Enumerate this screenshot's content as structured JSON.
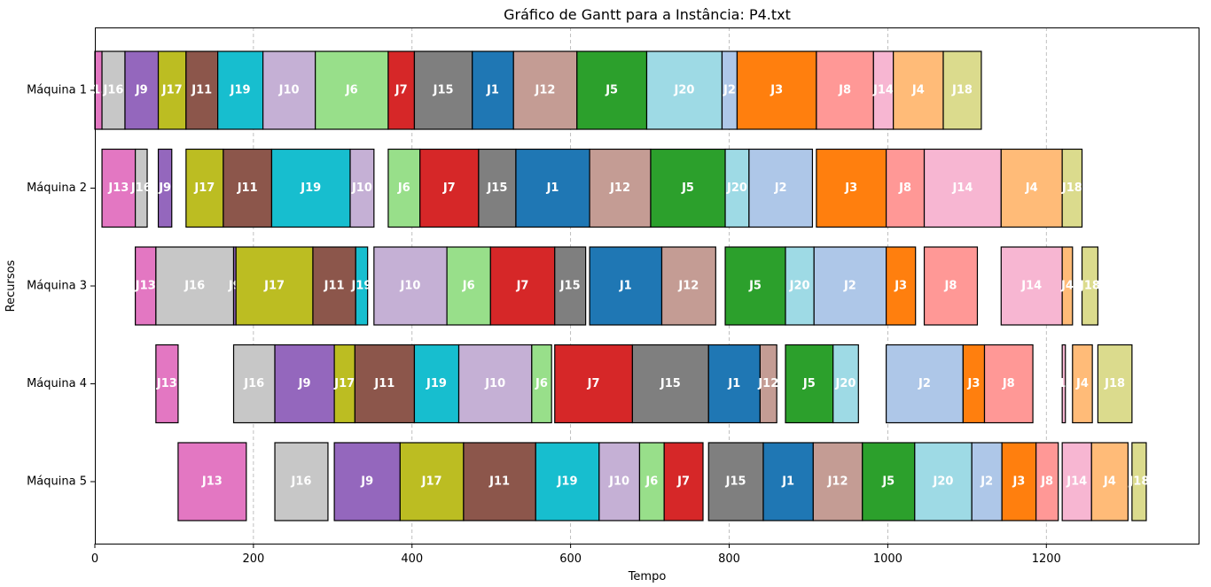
{
  "chart_data": {
    "type": "gantt",
    "title": "Gráfico de Gantt para a Instância: P4.txt",
    "xlabel": "Tempo",
    "ylabel": "Recursos",
    "xlim": [
      0,
      1392
    ],
    "xticks": [
      0,
      200,
      400,
      600,
      800,
      1000,
      1200
    ],
    "grid": "vertical dashed at x ticks",
    "resources": [
      "Máquina 1",
      "Máquina 2",
      "Máquina 3",
      "Máquina 4",
      "Máquina 5"
    ],
    "job_colors": {
      "J1": "#1f77b4",
      "J2": "#aec7e8",
      "J3": "#ff7f0e",
      "J4": "#ffbb78",
      "J5": "#2ca02c",
      "J6": "#98df8a",
      "J7": "#d62728",
      "J8": "#ff9896",
      "J9": "#9467bd",
      "J10": "#c5b0d5",
      "J11": "#8c564b",
      "J12": "#c49c94",
      "J13": "#e377c2",
      "J14": "#f7b6d2",
      "J15": "#7f7f7f",
      "J16": "#c7c7c7",
      "J17": "#bcbd22",
      "J18": "#dbdb8d",
      "J19": "#17becf",
      "J20": "#9edae5"
    },
    "tasks": [
      {
        "resource": "Máquina 1",
        "job": "J13",
        "start": 0,
        "end": 9
      },
      {
        "resource": "Máquina 1",
        "job": "J16",
        "start": 9,
        "end": 38
      },
      {
        "resource": "Máquina 1",
        "job": "J9",
        "start": 38,
        "end": 80
      },
      {
        "resource": "Máquina 1",
        "job": "J17",
        "start": 80,
        "end": 115
      },
      {
        "resource": "Máquina 1",
        "job": "J11",
        "start": 115,
        "end": 155
      },
      {
        "resource": "Máquina 1",
        "job": "J19",
        "start": 155,
        "end": 212
      },
      {
        "resource": "Máquina 1",
        "job": "J10",
        "start": 212,
        "end": 278
      },
      {
        "resource": "Máquina 1",
        "job": "J6",
        "start": 278,
        "end": 370
      },
      {
        "resource": "Máquina 1",
        "job": "J7",
        "start": 370,
        "end": 403
      },
      {
        "resource": "Máquina 1",
        "job": "J15",
        "start": 403,
        "end": 476
      },
      {
        "resource": "Máquina 1",
        "job": "J1",
        "start": 476,
        "end": 528
      },
      {
        "resource": "Máquina 1",
        "job": "J12",
        "start": 528,
        "end": 608
      },
      {
        "resource": "Máquina 1",
        "job": "J5",
        "start": 608,
        "end": 696
      },
      {
        "resource": "Máquina 1",
        "job": "J20",
        "start": 696,
        "end": 791
      },
      {
        "resource": "Máquina 1",
        "job": "J2",
        "start": 791,
        "end": 810
      },
      {
        "resource": "Máquina 1",
        "job": "J3",
        "start": 810,
        "end": 910
      },
      {
        "resource": "Máquina 1",
        "job": "J8",
        "start": 910,
        "end": 982
      },
      {
        "resource": "Máquina 1",
        "job": "J14",
        "start": 982,
        "end": 1007
      },
      {
        "resource": "Máquina 1",
        "job": "J4",
        "start": 1007,
        "end": 1070
      },
      {
        "resource": "Máquina 1",
        "job": "J18",
        "start": 1070,
        "end": 1118
      },
      {
        "resource": "Máquina 2",
        "job": "J13",
        "start": 9,
        "end": 51
      },
      {
        "resource": "Máquina 2",
        "job": "J16",
        "start": 51,
        "end": 66
      },
      {
        "resource": "Máquina 2",
        "job": "J9",
        "start": 80,
        "end": 97
      },
      {
        "resource": "Máquina 2",
        "job": "J17",
        "start": 115,
        "end": 162
      },
      {
        "resource": "Máquina 2",
        "job": "J11",
        "start": 162,
        "end": 223
      },
      {
        "resource": "Máquina 2",
        "job": "J19",
        "start": 223,
        "end": 322
      },
      {
        "resource": "Máquina 2",
        "job": "J10",
        "start": 322,
        "end": 352
      },
      {
        "resource": "Máquina 2",
        "job": "J6",
        "start": 370,
        "end": 410
      },
      {
        "resource": "Máquina 2",
        "job": "J7",
        "start": 410,
        "end": 484
      },
      {
        "resource": "Máquina 2",
        "job": "J15",
        "start": 484,
        "end": 531
      },
      {
        "resource": "Máquina 2",
        "job": "J1",
        "start": 531,
        "end": 624
      },
      {
        "resource": "Máquina 2",
        "job": "J12",
        "start": 624,
        "end": 701
      },
      {
        "resource": "Máquina 2",
        "job": "J5",
        "start": 701,
        "end": 795
      },
      {
        "resource": "Máquina 2",
        "job": "J20",
        "start": 795,
        "end": 825
      },
      {
        "resource": "Máquina 2",
        "job": "J2",
        "start": 825,
        "end": 905
      },
      {
        "resource": "Máquina 2",
        "job": "J3",
        "start": 910,
        "end": 998
      },
      {
        "resource": "Máquina 2",
        "job": "J8",
        "start": 998,
        "end": 1046
      },
      {
        "resource": "Máquina 2",
        "job": "J14",
        "start": 1046,
        "end": 1143
      },
      {
        "resource": "Máquina 2",
        "job": "J4",
        "start": 1143,
        "end": 1220
      },
      {
        "resource": "Máquina 2",
        "job": "J18",
        "start": 1220,
        "end": 1245
      },
      {
        "resource": "Máquina 3",
        "job": "J13",
        "start": 51,
        "end": 77
      },
      {
        "resource": "Máquina 3",
        "job": "J16",
        "start": 77,
        "end": 175
      },
      {
        "resource": "Máquina 3",
        "job": "J9",
        "start": 175,
        "end": 178
      },
      {
        "resource": "Máquina 3",
        "job": "J17",
        "start": 178,
        "end": 275
      },
      {
        "resource": "Máquina 3",
        "job": "J11",
        "start": 275,
        "end": 329
      },
      {
        "resource": "Máquina 3",
        "job": "J19",
        "start": 329,
        "end": 344
      },
      {
        "resource": "Máquina 3",
        "job": "J10",
        "start": 352,
        "end": 444
      },
      {
        "resource": "Máquina 3",
        "job": "J6",
        "start": 444,
        "end": 499
      },
      {
        "resource": "Máquina 3",
        "job": "J7",
        "start": 499,
        "end": 580
      },
      {
        "resource": "Máquina 3",
        "job": "J15",
        "start": 580,
        "end": 619
      },
      {
        "resource": "Máquina 3",
        "job": "J1",
        "start": 624,
        "end": 715
      },
      {
        "resource": "Máquina 3",
        "job": "J12",
        "start": 715,
        "end": 783
      },
      {
        "resource": "Máquina 3",
        "job": "J5",
        "start": 795,
        "end": 871
      },
      {
        "resource": "Máquina 3",
        "job": "J20",
        "start": 871,
        "end": 907
      },
      {
        "resource": "Máquina 3",
        "job": "J2",
        "start": 907,
        "end": 998
      },
      {
        "resource": "Máquina 3",
        "job": "J3",
        "start": 998,
        "end": 1035
      },
      {
        "resource": "Máquina 3",
        "job": "J8",
        "start": 1046,
        "end": 1113
      },
      {
        "resource": "Máquina 3",
        "job": "J14",
        "start": 1143,
        "end": 1220
      },
      {
        "resource": "Máquina 3",
        "job": "J4",
        "start": 1220,
        "end": 1233
      },
      {
        "resource": "Máquina 3",
        "job": "J18",
        "start": 1245,
        "end": 1265
      },
      {
        "resource": "Máquina 4",
        "job": "J13",
        "start": 77,
        "end": 105
      },
      {
        "resource": "Máquina 4",
        "job": "J16",
        "start": 175,
        "end": 227
      },
      {
        "resource": "Máquina 4",
        "job": "J9",
        "start": 227,
        "end": 302
      },
      {
        "resource": "Máquina 4",
        "job": "J17",
        "start": 302,
        "end": 328
      },
      {
        "resource": "Máquina 4",
        "job": "J11",
        "start": 328,
        "end": 403
      },
      {
        "resource": "Máquina 4",
        "job": "J19",
        "start": 403,
        "end": 459
      },
      {
        "resource": "Máquina 4",
        "job": "J10",
        "start": 459,
        "end": 551
      },
      {
        "resource": "Máquina 4",
        "job": "J6",
        "start": 551,
        "end": 576
      },
      {
        "resource": "Máquina 4",
        "job": "J7",
        "start": 580,
        "end": 678
      },
      {
        "resource": "Máquina 4",
        "job": "J15",
        "start": 678,
        "end": 774
      },
      {
        "resource": "Máquina 4",
        "job": "J1",
        "start": 774,
        "end": 839
      },
      {
        "resource": "Máquina 4",
        "job": "J12",
        "start": 839,
        "end": 860
      },
      {
        "resource": "Máquina 4",
        "job": "J5",
        "start": 871,
        "end": 931
      },
      {
        "resource": "Máquina 4",
        "job": "J20",
        "start": 931,
        "end": 963
      },
      {
        "resource": "Máquina 4",
        "job": "J2",
        "start": 998,
        "end": 1095
      },
      {
        "resource": "Máquina 4",
        "job": "J3",
        "start": 1095,
        "end": 1122
      },
      {
        "resource": "Máquina 4",
        "job": "J8",
        "start": 1122,
        "end": 1183
      },
      {
        "resource": "Máquina 4",
        "job": "J14",
        "start": 1220,
        "end": 1224
      },
      {
        "resource": "Máquina 4",
        "job": "J4",
        "start": 1233,
        "end": 1258
      },
      {
        "resource": "Máquina 4",
        "job": "J18",
        "start": 1265,
        "end": 1308
      },
      {
        "resource": "Máquina 5",
        "job": "J13",
        "start": 105,
        "end": 191
      },
      {
        "resource": "Máquina 5",
        "job": "J16",
        "start": 227,
        "end": 294
      },
      {
        "resource": "Máquina 5",
        "job": "J9",
        "start": 302,
        "end": 385
      },
      {
        "resource": "Máquina 5",
        "job": "J17",
        "start": 385,
        "end": 465
      },
      {
        "resource": "Máquina 5",
        "job": "J11",
        "start": 465,
        "end": 556
      },
      {
        "resource": "Máquina 5",
        "job": "J19",
        "start": 556,
        "end": 636
      },
      {
        "resource": "Máquina 5",
        "job": "J10",
        "start": 636,
        "end": 687
      },
      {
        "resource": "Máquina 5",
        "job": "J6",
        "start": 687,
        "end": 718
      },
      {
        "resource": "Máquina 5",
        "job": "J7",
        "start": 718,
        "end": 767
      },
      {
        "resource": "Máquina 5",
        "job": "J15",
        "start": 774,
        "end": 843
      },
      {
        "resource": "Máquina 5",
        "job": "J1",
        "start": 843,
        "end": 906
      },
      {
        "resource": "Máquina 5",
        "job": "J12",
        "start": 906,
        "end": 968
      },
      {
        "resource": "Máquina 5",
        "job": "J5",
        "start": 968,
        "end": 1034
      },
      {
        "resource": "Máquina 5",
        "job": "J20",
        "start": 1034,
        "end": 1106
      },
      {
        "resource": "Máquina 5",
        "job": "J2",
        "start": 1106,
        "end": 1144
      },
      {
        "resource": "Máquina 5",
        "job": "J3",
        "start": 1144,
        "end": 1187
      },
      {
        "resource": "Máquina 5",
        "job": "J8",
        "start": 1187,
        "end": 1215
      },
      {
        "resource": "Máquina 5",
        "job": "J14",
        "start": 1220,
        "end": 1257
      },
      {
        "resource": "Máquina 5",
        "job": "J4",
        "start": 1257,
        "end": 1303
      },
      {
        "resource": "Máquina 5",
        "job": "J18",
        "start": 1308,
        "end": 1326
      }
    ]
  }
}
